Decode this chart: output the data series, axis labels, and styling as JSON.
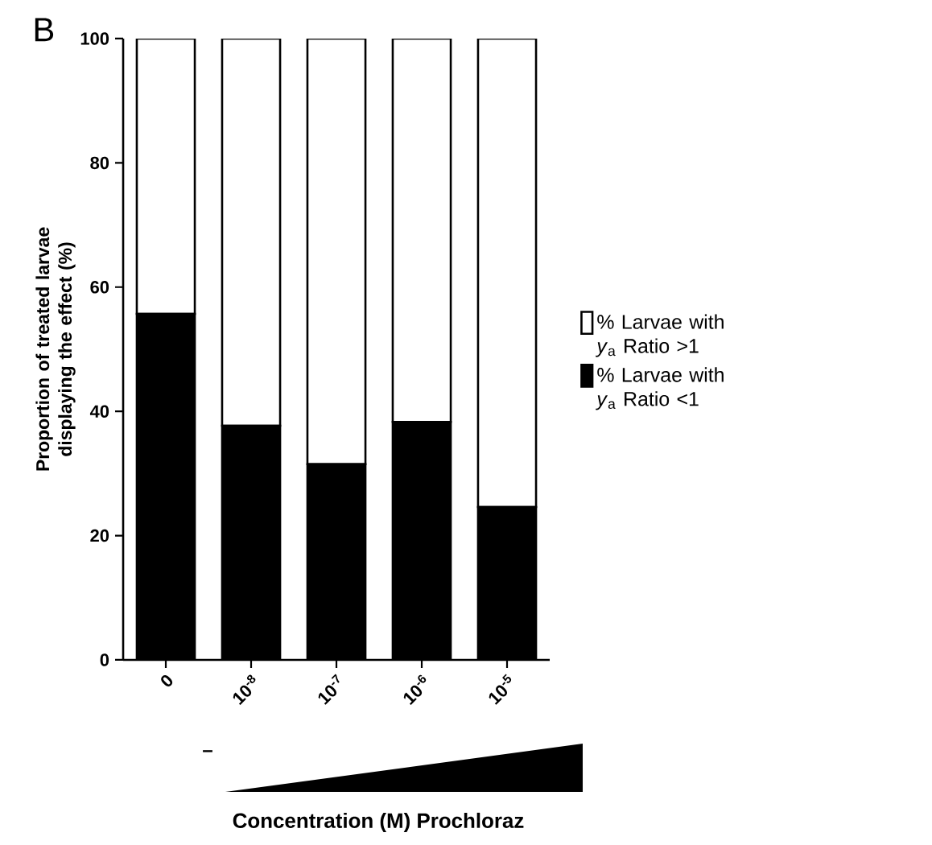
{
  "chart_data": {
    "type": "bar",
    "stacked": true,
    "ylabel": "Proportion of treated larvae displaying the effect (%)",
    "annotations": [
      "B",
      "–",
      "Concentration (M) Prochloraz"
    ],
    "categories": [
      "0",
      "10$^{-8}$",
      "10$^{-7}$",
      "10$^{-6}$",
      "10$^{-5}$"
    ],
    "series": [
      {
        "name": "% Larvae with *y*$_{a}$ Ratio <1",
        "color": "#000000",
        "values": [
          55.7,
          37.7,
          31.5,
          38.3,
          24.6
        ]
      },
      {
        "name": "% Larvae with *y*$_{a}$ Ratio >1",
        "color": "#ffffff",
        "values": [
          44.3,
          62.3,
          68.5,
          61.7,
          75.4
        ]
      }
    ],
    "ylim": [
      0,
      100
    ],
    "yticks": [
      0,
      20,
      40,
      60,
      80,
      100
    ],
    "legend": "right"
  }
}
